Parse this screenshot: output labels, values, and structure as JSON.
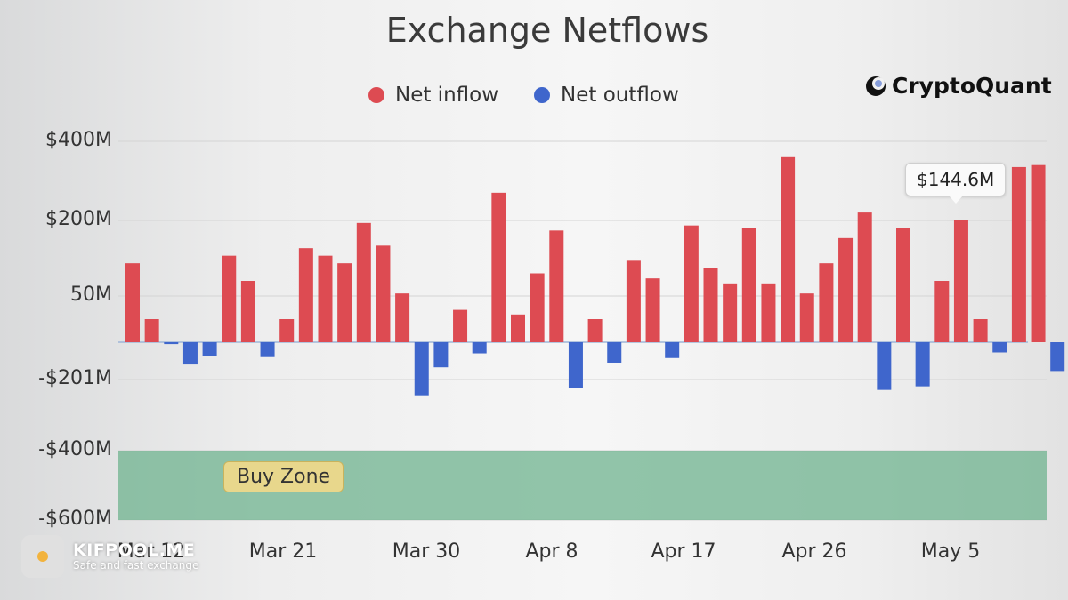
{
  "chart_data": {
    "type": "bar",
    "title": "Exchange Netflows",
    "legend": [
      {
        "name": "Net inflow",
        "color": "#dd4b52"
      },
      {
        "name": "Net outflow",
        "color": "#3f66cc"
      }
    ],
    "yticks": [
      {
        "label": "$400M",
        "value": 400
      },
      {
        "label": "$200M",
        "value": 200
      },
      {
        "label": "50M",
        "value": 50
      },
      {
        "label": "-$201M",
        "value": -201
      },
      {
        "label": "-$400M",
        "value": -400
      },
      {
        "label": "-$600M",
        "value": -600
      }
    ],
    "xticks": [
      "Mar 12",
      "Mar 21",
      "Mar 30",
      "Apr 8",
      "Apr 17",
      "Apr 26",
      "May 5"
    ],
    "values": [
      115,
      25,
      -10,
      -120,
      -75,
      130,
      80,
      -80,
      25,
      145,
      130,
      115,
      195,
      150,
      55,
      -245,
      -135,
      35,
      -60,
      270,
      30,
      95,
      180,
      -225,
      25,
      -110,
      120,
      85,
      -85,
      190,
      105,
      75,
      185,
      75,
      360,
      55,
      115,
      165,
      220,
      -230,
      185,
      -220,
      80,
      200,
      25,
      -55,
      335,
      340,
      -155,
      15
    ],
    "ylim": [
      -600,
      450
    ],
    "grid": true,
    "legend_position": "top",
    "band": {
      "label": "Buy Zone",
      "from": -600,
      "to": -400,
      "color": "#6fb38f"
    },
    "annotation": {
      "label": "$144.6M"
    }
  },
  "brand": {
    "name": "CryptoQuant",
    "icon": "cryptoquant-logo-icon"
  },
  "watermark": {
    "name": "KIFPOOL.ME",
    "tagline": "Safe and fast exchange",
    "icon": "kifpool-logo-icon"
  }
}
